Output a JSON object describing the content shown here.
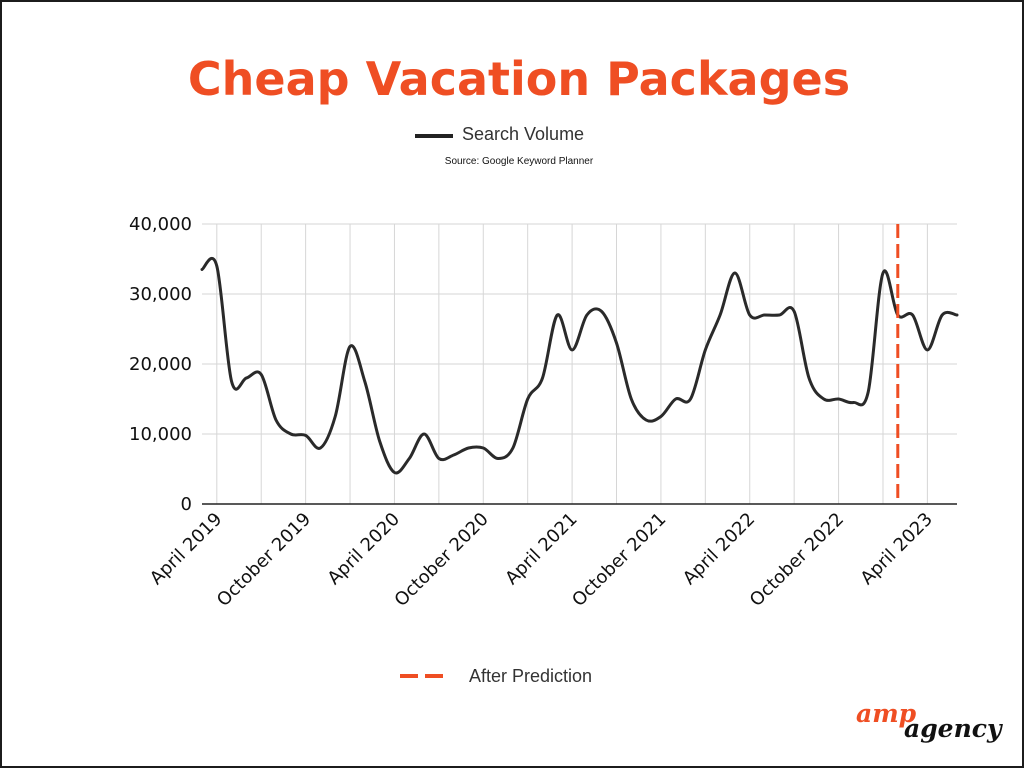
{
  "colors": {
    "accent": "#ef4e23",
    "line": "#2a2a2a",
    "grid": "#d6d6d6",
    "text": "#111111"
  },
  "logo": {
    "part1": "amp",
    "part2": "agency"
  },
  "chart_data": {
    "type": "line",
    "title": "Cheap Vacation Packages",
    "source": "Source: Google Keyword Planner",
    "xlabel": "",
    "ylabel": "",
    "ylim": [
      0,
      40000
    ],
    "yticks": [
      0,
      10000,
      20000,
      30000,
      40000
    ],
    "ytick_labels": [
      "0",
      "10,000",
      "20,000",
      "30,000",
      "40,000"
    ],
    "xlim": [
      "2019-03",
      "2023-06"
    ],
    "xtick_labels": [
      "April 2019",
      "October 2019",
      "April 2020",
      "October 2020",
      "April 2021",
      "October 2021",
      "April 2022",
      "October 2022",
      "April 2023"
    ],
    "xtick_months": [
      "2019-04",
      "2019-10",
      "2020-04",
      "2020-10",
      "2021-04",
      "2021-10",
      "2022-04",
      "2022-10",
      "2023-04"
    ],
    "grid": true,
    "legend": {
      "placement": "top-center",
      "entries": [
        "Search Volume",
        "After Prediction"
      ]
    },
    "prediction_marker": {
      "label": "After Prediction",
      "x": "2023-02"
    },
    "series": [
      {
        "name": "Search Volume",
        "x": [
          "2019-03",
          "2019-04",
          "2019-05",
          "2019-06",
          "2019-07",
          "2019-08",
          "2019-09",
          "2019-10",
          "2019-11",
          "2019-12",
          "2020-01",
          "2020-02",
          "2020-03",
          "2020-04",
          "2020-05",
          "2020-06",
          "2020-07",
          "2020-08",
          "2020-09",
          "2020-10",
          "2020-11",
          "2020-12",
          "2021-01",
          "2021-02",
          "2021-03",
          "2021-04",
          "2021-05",
          "2021-06",
          "2021-07",
          "2021-08",
          "2021-09",
          "2021-10",
          "2021-11",
          "2021-12",
          "2022-01",
          "2022-02",
          "2022-03",
          "2022-04",
          "2022-05",
          "2022-06",
          "2022-07",
          "2022-08",
          "2022-09",
          "2022-10",
          "2022-11",
          "2022-12",
          "2023-01",
          "2023-02",
          "2023-03",
          "2023-04",
          "2023-05",
          "2023-06"
        ],
        "values": [
          33500,
          34000,
          17500,
          18000,
          18500,
          12000,
          10000,
          9800,
          8000,
          12500,
          22500,
          17500,
          9000,
          4500,
          6500,
          10000,
          6500,
          7000,
          8000,
          8000,
          6500,
          8000,
          15000,
          18000,
          27000,
          22000,
          27000,
          27500,
          23000,
          15000,
          12000,
          12500,
          15000,
          15000,
          22000,
          27000,
          33000,
          27000,
          27000,
          27000,
          27500,
          18000,
          15000,
          15000,
          14500,
          16000,
          33000,
          27000,
          27000,
          22000,
          27000,
          27000
        ]
      }
    ]
  }
}
